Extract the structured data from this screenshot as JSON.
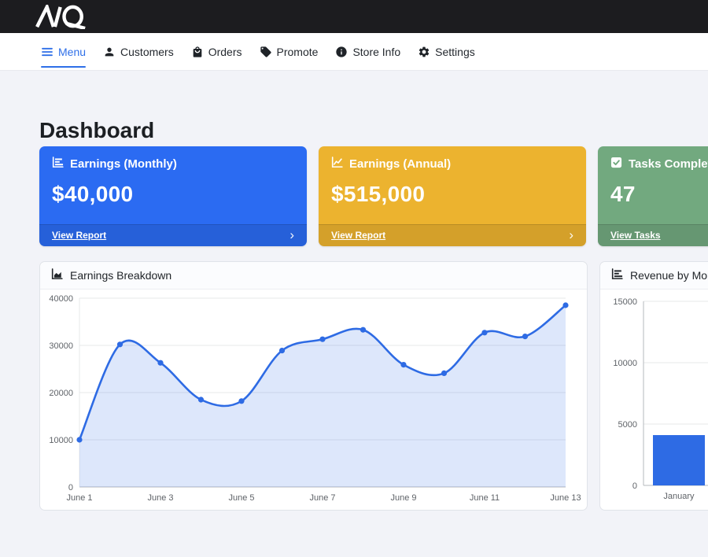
{
  "brand": {
    "name": "AIQ"
  },
  "nav": {
    "active_color": "#2e6fe8",
    "items": [
      {
        "label": "Menu",
        "icon": "hamburger-icon",
        "active": true
      },
      {
        "label": "Customers",
        "icon": "person-icon",
        "active": false
      },
      {
        "label": "Orders",
        "icon": "shopping-bag-icon",
        "active": false
      },
      {
        "label": "Promote",
        "icon": "tag-icon",
        "active": false
      },
      {
        "label": "Store Info",
        "icon": "info-circle-icon",
        "active": false
      },
      {
        "label": "Settings",
        "icon": "gear-icon",
        "active": false
      }
    ]
  },
  "page": {
    "title": "Dashboard"
  },
  "ui": {
    "chevron_right": "›"
  },
  "cards": [
    {
      "title": "Earnings (Monthly)",
      "value": "$40,000",
      "link_label": "View Report",
      "icon": "bar-chart-icon",
      "color": "#2b6bf2"
    },
    {
      "title": "Earnings (Annual)",
      "value": "$515,000",
      "link_label": "View Report",
      "icon": "line-chart-icon",
      "color": "#ecb32f"
    },
    {
      "title": "Tasks Completed",
      "value": "47",
      "link_label": "View Tasks",
      "icon": "check-square-icon",
      "color": "#72a97f"
    }
  ],
  "chart_data": [
    {
      "type": "area",
      "title": "Earnings Breakdown",
      "x": [
        "June 1",
        "June 2",
        "June 3",
        "June 4",
        "June 5",
        "June 6",
        "June 7",
        "June 8",
        "June 9",
        "June 10",
        "June 11",
        "June 12",
        "June 13"
      ],
      "values": [
        10000,
        30200,
        26300,
        18500,
        18200,
        28900,
        31300,
        33300,
        25900,
        24100,
        32700,
        31900,
        38500
      ],
      "ylim": [
        0,
        40000
      ],
      "yticks": [
        0,
        10000,
        20000,
        30000,
        40000
      ],
      "xtick_labels": [
        "June 1",
        "June 3",
        "June 5",
        "June 7",
        "June 9",
        "June 11",
        "June 13"
      ],
      "grid": true,
      "legend": false,
      "line_color": "#2e6be4",
      "fill_color": "#dce6f8",
      "point_color": "#2e6be4"
    },
    {
      "type": "bar",
      "title": "Revenue by Month",
      "categories": [
        "January"
      ],
      "values": [
        4100
      ],
      "ylim": [
        0,
        15000
      ],
      "yticks": [
        0,
        5000,
        10000,
        15000
      ],
      "grid": true,
      "legend": false,
      "bar_color": "#2e6be4"
    }
  ]
}
